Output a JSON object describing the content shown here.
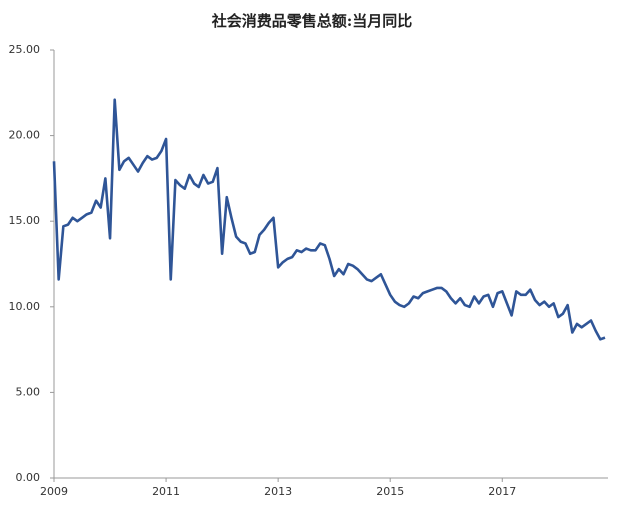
{
  "chart_data": {
    "type": "line",
    "title": "社会消费品零售总额:当月同比",
    "categories": [
      "2009",
      null,
      null,
      null,
      null,
      null,
      null,
      null,
      null,
      null,
      null,
      null,
      null,
      null,
      null,
      null,
      null,
      null,
      null,
      null,
      null,
      null,
      null,
      null,
      "2011",
      null,
      null,
      null,
      null,
      null,
      null,
      null,
      null,
      null,
      null,
      null,
      null,
      null,
      null,
      null,
      null,
      null,
      null,
      null,
      null,
      null,
      null,
      null,
      "2013",
      null,
      null,
      null,
      null,
      null,
      null,
      null,
      null,
      null,
      null,
      null,
      null,
      null,
      null,
      null,
      null,
      null,
      null,
      null,
      null,
      null,
      null,
      null,
      "2015",
      null,
      null,
      null,
      null,
      null,
      null,
      null,
      null,
      null,
      null,
      null,
      null,
      null,
      null,
      null,
      null,
      null,
      null,
      null,
      null,
      null,
      null,
      null,
      "2017",
      null,
      null,
      null,
      null,
      null,
      null,
      null,
      null,
      null,
      null,
      null,
      null,
      null,
      null,
      null,
      null,
      null,
      null,
      null,
      null,
      null,
      null
    ],
    "series": [
      {
        "color": "#2f5597",
        "values": [
          18.5,
          11.6,
          14.7,
          14.8,
          15.2,
          15.0,
          15.2,
          15.4,
          15.5,
          16.2,
          15.8,
          17.5,
          14.0,
          22.1,
          18.0,
          18.5,
          18.7,
          18.3,
          17.9,
          18.4,
          18.8,
          18.6,
          18.7,
          19.1,
          19.8,
          11.6,
          17.4,
          17.1,
          16.9,
          17.7,
          17.2,
          17.0,
          17.7,
          17.2,
          17.3,
          18.1,
          13.1,
          16.4,
          15.2,
          14.1,
          13.8,
          13.7,
          13.1,
          13.2,
          14.2,
          14.5,
          14.9,
          15.2,
          12.3,
          12.6,
          12.8,
          12.9,
          13.3,
          13.2,
          13.4,
          13.3,
          13.3,
          13.7,
          13.6,
          12.8,
          11.8,
          12.2,
          11.9,
          12.5,
          12.4,
          12.2,
          11.9,
          11.6,
          11.5,
          11.7,
          11.9,
          11.3,
          10.7,
          10.3,
          10.1,
          10.0,
          10.2,
          10.6,
          10.5,
          10.8,
          10.9,
          11.0,
          11.1,
          11.1,
          10.9,
          10.5,
          10.2,
          10.5,
          10.1,
          10.0,
          10.6,
          10.2,
          10.6,
          10.7,
          10.0,
          10.8,
          10.9,
          10.2,
          9.5,
          10.9,
          10.7,
          10.7,
          11.0,
          10.4,
          10.1,
          10.3,
          10.0,
          10.2,
          9.4,
          9.6,
          10.1,
          8.5,
          9.0,
          8.8,
          9.0,
          9.2,
          8.6,
          8.1,
          8.2
        ]
      }
    ],
    "ylim": [
      0,
      25
    ],
    "yticks": [
      {
        "value": 0,
        "label": "0.00"
      },
      {
        "value": 5,
        "label": "5.00"
      },
      {
        "value": 10,
        "label": "10.00"
      },
      {
        "value": 15,
        "label": "15.00"
      },
      {
        "value": 20,
        "label": "20.00"
      },
      {
        "value": 25,
        "label": "25.00"
      }
    ],
    "grid": false
  }
}
